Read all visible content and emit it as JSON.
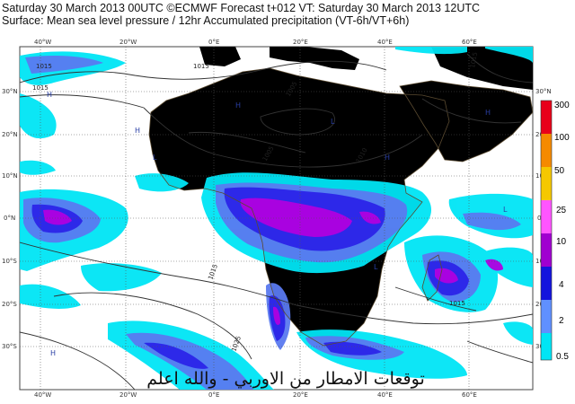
{
  "header": {
    "line1": "Saturday 30 March 2013 00UTC ©ECMWF Forecast t+012 VT: Saturday 30 March 2013 12UTC",
    "line2": "Surface: Mean sea level pressure / 12hr Accumulated precipitation (VT-6h/VT+6h)"
  },
  "axes": {
    "lon_top": [
      "40°W",
      "20°W",
      "0°E",
      "20°E",
      "40°E",
      "60°E"
    ],
    "lon_bottom": [
      "40°W",
      "20°W",
      "0°E",
      "20°E",
      "40°E",
      "60°E"
    ],
    "lat_left": [
      "30°N",
      "20°N",
      "10°N",
      "0°N",
      "10°S",
      "20°S",
      "30°S"
    ],
    "lat_right": [
      "30°N",
      "20°N",
      "10°N",
      "0°N",
      "10°S",
      "20°S",
      "30°S"
    ]
  },
  "isobar_labels": [
    "1015",
    "1015",
    "1015",
    "1005",
    "1010",
    "1005",
    "1015",
    "1015",
    "1015",
    "1025"
  ],
  "pressure_centres": [
    "H",
    "H",
    "H",
    "H",
    "H",
    "H",
    "L",
    "L",
    "L",
    "L"
  ],
  "legend": {
    "levels": [
      "300",
      "100",
      "50",
      "25",
      "10",
      "4",
      "2",
      "0.5"
    ],
    "colors": [
      "#e8001a",
      "#f58a00",
      "#f5c800",
      "#ff55ff",
      "#a000d0",
      "#1414dd",
      "#6090ff",
      "#00e5f5"
    ]
  },
  "watermark": "توقعات الامطار من الاوربي - والله اعلم",
  "colors": {
    "ocean": "#ffffff",
    "land": "#efc88c",
    "precip_light": "#00e5f5",
    "precip_medium": "#5a7af0",
    "precip_heavy": "#2b24e8",
    "precip_very_heavy": "#b000e0"
  }
}
